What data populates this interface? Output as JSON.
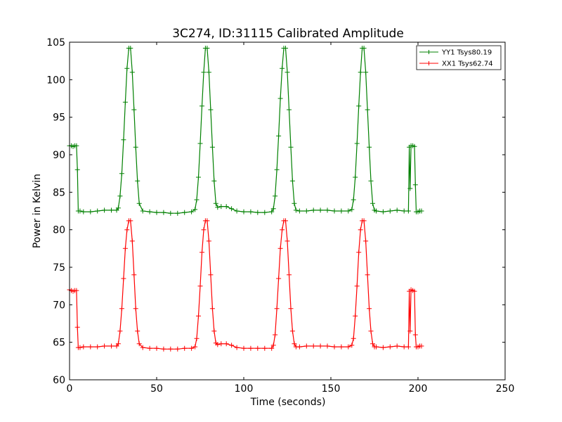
{
  "chart_data": {
    "type": "line",
    "title": "3C274, ID:31115 Calibrated Amplitude",
    "xlabel": "Time (seconds)",
    "ylabel": "Power in Kelvin",
    "xlim": [
      0,
      250
    ],
    "ylim": [
      60,
      105
    ],
    "xticks": [
      "0",
      "50",
      "100",
      "150",
      "200",
      "250"
    ],
    "yticks": [
      "60",
      "65",
      "70",
      "75",
      "80",
      "85",
      "90",
      "95",
      "100",
      "105"
    ],
    "grid": false,
    "legend_position": "top-right",
    "series": [
      {
        "name": "YY1 Tsys80.19",
        "color": "#008000",
        "marker": "+",
        "x": [
          0,
          1,
          2,
          3,
          4,
          4.5,
          5,
          6,
          8,
          12,
          16,
          20,
          24,
          27,
          28,
          29,
          30,
          31,
          32,
          33,
          34,
          35,
          36,
          37,
          38,
          39,
          40,
          42,
          46,
          50,
          54,
          58,
          62,
          66,
          70,
          72,
          73,
          74,
          75,
          76,
          77,
          78,
          79,
          80,
          81,
          82,
          83,
          84,
          85,
          87,
          90,
          93,
          96,
          100,
          104,
          108,
          112,
          116,
          117,
          118,
          119,
          120,
          121,
          122,
          123,
          124,
          125,
          126,
          127,
          128,
          129,
          130,
          132,
          136,
          140,
          144,
          148,
          152,
          156,
          160,
          162,
          163,
          164,
          165,
          166,
          167,
          168,
          169,
          170,
          171,
          172,
          173,
          174,
          175,
          176,
          180,
          184,
          188,
          192,
          194.5,
          195,
          195.5,
          196,
          197,
          198,
          198.5,
          199,
          200,
          201,
          202
        ],
        "y": [
          91.2,
          91.2,
          91.1,
          91.2,
          91.2,
          88,
          82.5,
          82.5,
          82.4,
          82.4,
          82.5,
          82.6,
          82.6,
          82.6,
          82.9,
          84.5,
          87.5,
          92,
          97,
          101.5,
          104.2,
          104.2,
          101,
          96,
          91,
          86.5,
          83.5,
          82.5,
          82.4,
          82.3,
          82.3,
          82.2,
          82.2,
          82.3,
          82.4,
          82.7,
          84,
          87,
          91.5,
          96.5,
          101,
          104.2,
          104.2,
          101,
          96,
          91,
          86.5,
          83.5,
          83,
          83.1,
          83.1,
          82.8,
          82.5,
          82.4,
          82.4,
          82.3,
          82.3,
          82.4,
          82.8,
          84.5,
          88,
          92.5,
          97.5,
          101.5,
          104.2,
          104.2,
          101,
          96,
          91,
          86.5,
          83.5,
          82.6,
          82.5,
          82.5,
          82.6,
          82.6,
          82.6,
          82.5,
          82.5,
          82.5,
          82.7,
          84,
          87,
          91.5,
          96.5,
          101,
          104.2,
          104.2,
          101,
          96,
          91,
          86.5,
          83.5,
          82.6,
          82.5,
          82.4,
          82.5,
          82.6,
          82.5,
          82.5,
          91,
          85.5,
          91.2,
          91.2,
          91.1,
          86,
          82.4,
          82.4,
          82.5,
          82.5
        ]
      },
      {
        "name": "XX1 Tsys62.74",
        "color": "#ff0000",
        "marker": "+",
        "x": [
          0,
          1,
          2,
          3,
          4,
          4.5,
          5,
          6,
          8,
          12,
          16,
          20,
          24,
          27,
          28,
          29,
          30,
          31,
          32,
          33,
          34,
          35,
          36,
          37,
          38,
          39,
          40,
          42,
          46,
          50,
          54,
          58,
          62,
          66,
          70,
          72,
          73,
          74,
          75,
          76,
          77,
          78,
          79,
          80,
          81,
          82,
          83,
          84,
          85,
          87,
          90,
          93,
          96,
          100,
          104,
          108,
          112,
          116,
          117,
          118,
          119,
          120,
          121,
          122,
          123,
          124,
          125,
          126,
          127,
          128,
          129,
          130,
          132,
          136,
          140,
          144,
          148,
          152,
          156,
          160,
          162,
          163,
          164,
          165,
          166,
          167,
          168,
          169,
          170,
          171,
          172,
          173,
          174,
          175,
          176,
          180,
          184,
          188,
          192,
          194.5,
          195,
          195.5,
          196,
          197,
          198,
          198.5,
          199,
          200,
          201,
          202
        ],
        "y": [
          72,
          71.9,
          71.8,
          71.9,
          71.9,
          67,
          64.3,
          64.3,
          64.4,
          64.4,
          64.4,
          64.5,
          64.5,
          64.5,
          64.8,
          66.5,
          69.5,
          73.5,
          77.5,
          80,
          81.2,
          81.2,
          78.5,
          74,
          69.5,
          66.5,
          64.8,
          64.3,
          64.2,
          64.2,
          64.1,
          64.1,
          64.1,
          64.2,
          64.2,
          64.4,
          65.5,
          68.5,
          72.5,
          77,
          80,
          81.2,
          81.2,
          78.5,
          74,
          69.5,
          66.5,
          64.9,
          64.7,
          64.8,
          64.8,
          64.6,
          64.3,
          64.2,
          64.2,
          64.2,
          64.2,
          64.2,
          64.6,
          66,
          69.5,
          73.5,
          77.5,
          80,
          81.2,
          81.2,
          78.5,
          74,
          69.5,
          66.5,
          64.8,
          64.4,
          64.4,
          64.5,
          64.5,
          64.5,
          64.5,
          64.4,
          64.4,
          64.4,
          64.6,
          65.5,
          68.5,
          72.5,
          77,
          80,
          81.2,
          81.2,
          78.5,
          74,
          69.5,
          66.5,
          64.8,
          64.4,
          64.4,
          64.3,
          64.4,
          64.5,
          64.4,
          64.4,
          71.8,
          66.5,
          72,
          71.9,
          71.8,
          66,
          64.4,
          64.4,
          64.5,
          64.5
        ]
      }
    ]
  }
}
